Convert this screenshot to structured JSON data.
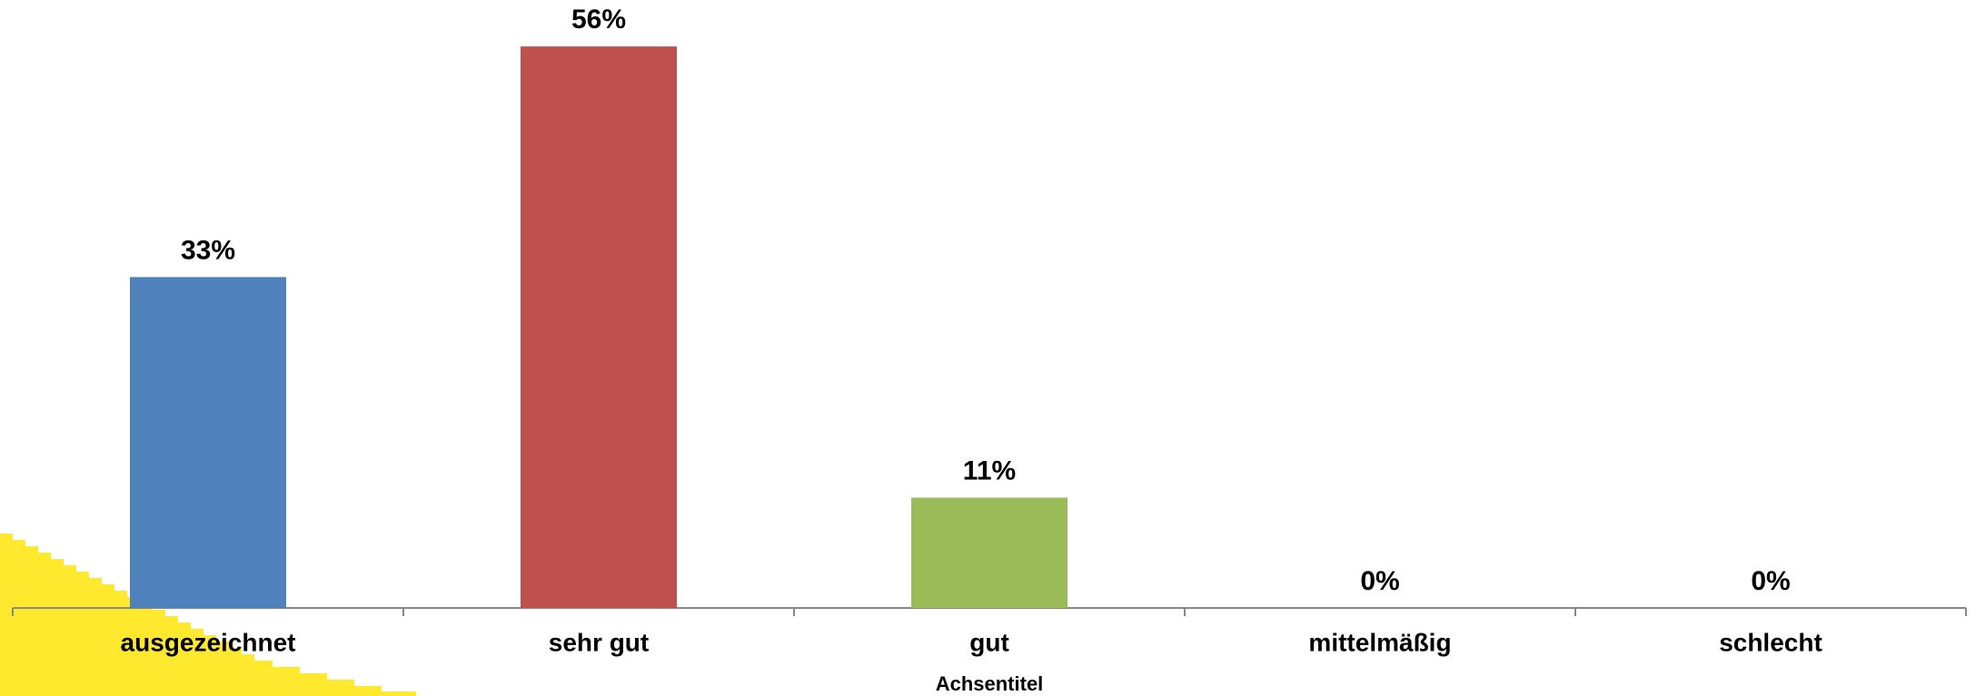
{
  "chart_data": {
    "type": "bar",
    "categories": [
      "ausgezeichnet",
      "sehr gut",
      "gut",
      "mittelmäßig",
      "schlecht"
    ],
    "values": [
      33,
      56,
      11,
      0,
      0
    ],
    "value_labels": [
      "33%",
      "56%",
      "11%",
      "0%",
      "0%"
    ],
    "colors": [
      "#4f81bd",
      "#c0504d",
      "#9bbb59",
      "#8064a2",
      "#4bacc6"
    ],
    "x_label": "Achsentitel"
  }
}
